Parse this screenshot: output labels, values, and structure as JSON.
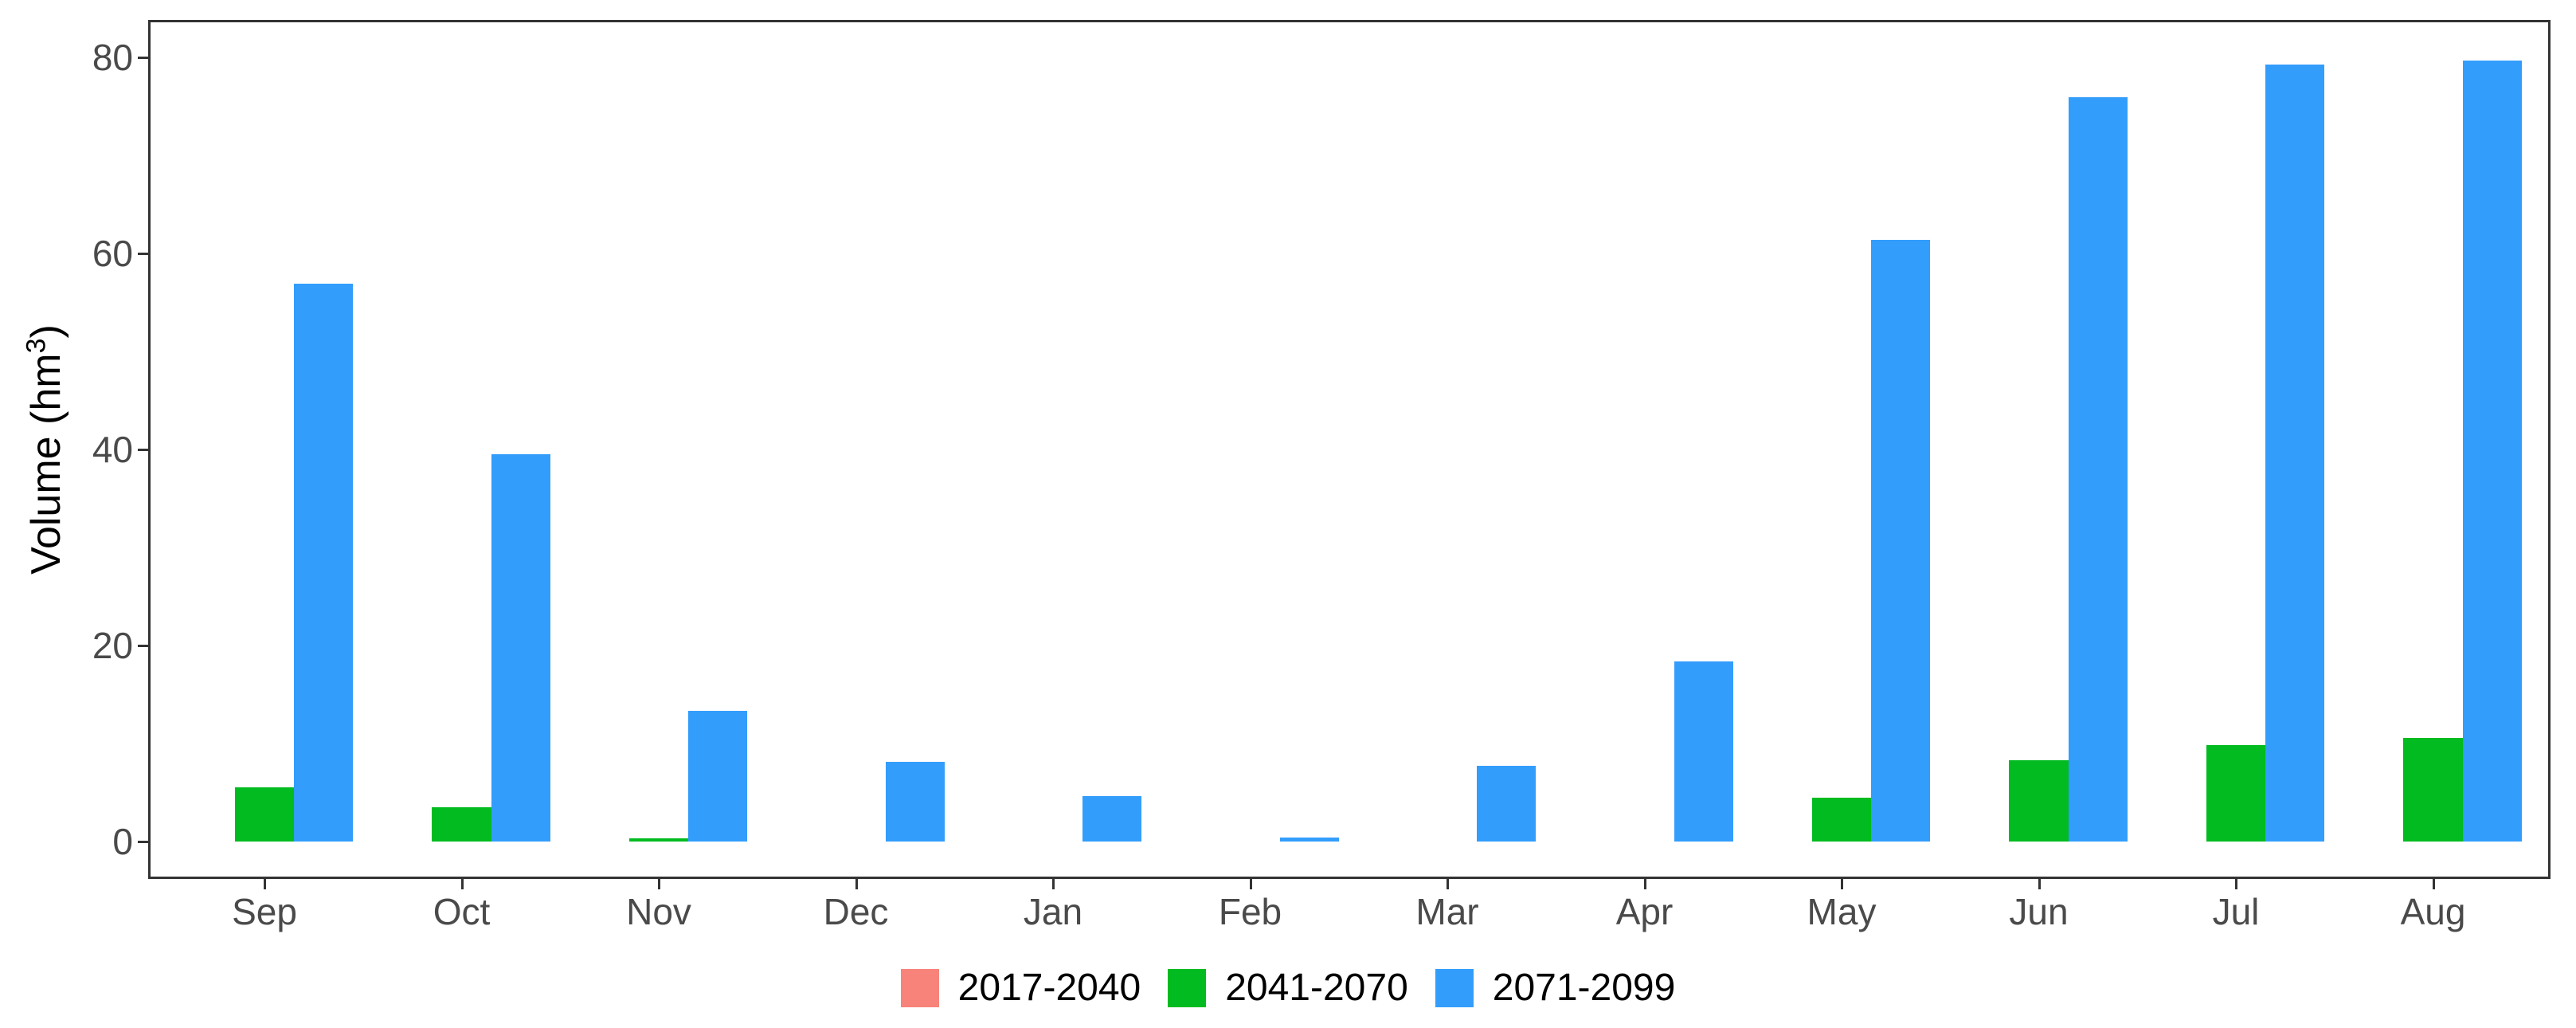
{
  "figure": {
    "background": "#ffffff"
  },
  "y_axis": {
    "title": "Volume (hm³)",
    "title_base": "Volume (hm",
    "title_sup": "3",
    "title_close": ")",
    "ticks": [
      0,
      20,
      40,
      60,
      80
    ]
  },
  "x_axis": {
    "labels": [
      "Sep",
      "Oct",
      "Nov",
      "Dec",
      "Jan",
      "Feb",
      "Mar",
      "Apr",
      "May",
      "Jun",
      "Jul",
      "Aug"
    ]
  },
  "legend": {
    "items": [
      {
        "label": "2017-2040",
        "color": "#F8837A"
      },
      {
        "label": "2041-2070",
        "color": "#02BB20"
      },
      {
        "label": "2071-2099",
        "color": "#339DFC"
      }
    ]
  },
  "colors": {
    "axis_line": "#333333",
    "tick_text": "#4a4a4a",
    "series_red": "#F8837A",
    "series_green": "#02BB20",
    "series_blue": "#339DFC"
  },
  "chart_data": {
    "type": "bar",
    "title": "",
    "xlabel": "",
    "ylabel": "Volume (hm³)",
    "ylim": [
      0,
      80
    ],
    "grid": false,
    "legend_position": "bottom",
    "categories": [
      "Sep",
      "Oct",
      "Nov",
      "Dec",
      "Jan",
      "Feb",
      "Mar",
      "Apr",
      "May",
      "Jun",
      "Jul",
      "Aug"
    ],
    "series": [
      {
        "name": "2017-2040",
        "color": "#F8837A",
        "values": [
          0,
          0,
          0,
          0,
          0,
          0,
          0,
          0,
          0,
          0,
          0,
          0
        ]
      },
      {
        "name": "2041-2070",
        "color": "#02BB20",
        "values": [
          5.5,
          3.5,
          0.3,
          0,
          0,
          0,
          0,
          0,
          4.5,
          8.3,
          9.8,
          10.6
        ]
      },
      {
        "name": "2071-2099",
        "color": "#339DFC",
        "values": [
          56.9,
          39.5,
          13.3,
          8.1,
          4.6,
          0.4,
          7.7,
          18.4,
          61.4,
          75.9,
          79.3,
          79.7
        ]
      }
    ]
  }
}
